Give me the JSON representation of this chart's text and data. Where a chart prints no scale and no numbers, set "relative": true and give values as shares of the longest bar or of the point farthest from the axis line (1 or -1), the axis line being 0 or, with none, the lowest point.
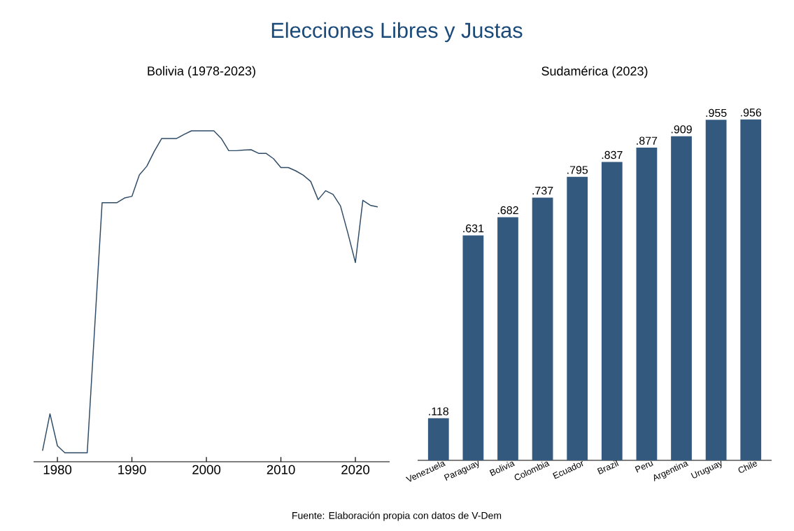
{
  "chart_data": [
    {
      "type": "line",
      "title": "Bolivia (1978-2023)",
      "relative": true,
      "color": "#2f4b66",
      "marker": "none",
      "x": [
        1978,
        1979,
        1980,
        1981,
        1982,
        1983,
        1984,
        1985,
        1986,
        1987,
        1988,
        1989,
        1990,
        1991,
        1992,
        1993,
        1994,
        1995,
        1996,
        1997,
        1998,
        1999,
        2000,
        2001,
        2002,
        2003,
        2004,
        2005,
        2006,
        2007,
        2008,
        2009,
        2010,
        2011,
        2012,
        2013,
        2014,
        2015,
        2016,
        2017,
        2018,
        2019,
        2020,
        2021,
        2022,
        2023
      ],
      "values": [
        0.033,
        0.145,
        0.048,
        0.027,
        0.027,
        0.027,
        0.027,
        0.405,
        0.783,
        0.783,
        0.783,
        0.797,
        0.802,
        0.867,
        0.893,
        0.938,
        0.977,
        0.977,
        0.977,
        0.989,
        1.0,
        1.0,
        1.0,
        1.0,
        0.977,
        0.94,
        0.94,
        0.942,
        0.943,
        0.932,
        0.932,
        0.916,
        0.889,
        0.889,
        0.879,
        0.866,
        0.847,
        0.792,
        0.819,
        0.808,
        0.773,
        0.69,
        0.602,
        0.79,
        0.775,
        0.77
      ],
      "xlim": [
        1976.8,
        2024.6
      ],
      "xticks": [
        1980,
        1990,
        2000,
        2010,
        2020
      ]
    },
    {
      "type": "bar",
      "title": "Sudamérica (2023)",
      "color": "#34597e",
      "categories": [
        "Venezuela",
        "Paraguay",
        "Bolivia",
        "Colombia",
        "Ecuador",
        "Brazil",
        "Peru",
        "Argentina",
        "Uruguay",
        "Chile"
      ],
      "values": [
        0.118,
        0.631,
        0.682,
        0.737,
        0.795,
        0.837,
        0.877,
        0.909,
        0.955,
        0.956
      ],
      "value_labels": [
        ".118",
        ".631",
        ".682",
        ".737",
        ".795",
        ".837",
        ".877",
        ".909",
        ".955",
        ".956"
      ]
    },
    {
      "type": "other",
      "title": "Elecciones Libres y Justas",
      "annotations": [
        "Fuente: Elaboración propia con datos de V-Dem"
      ]
    }
  ]
}
